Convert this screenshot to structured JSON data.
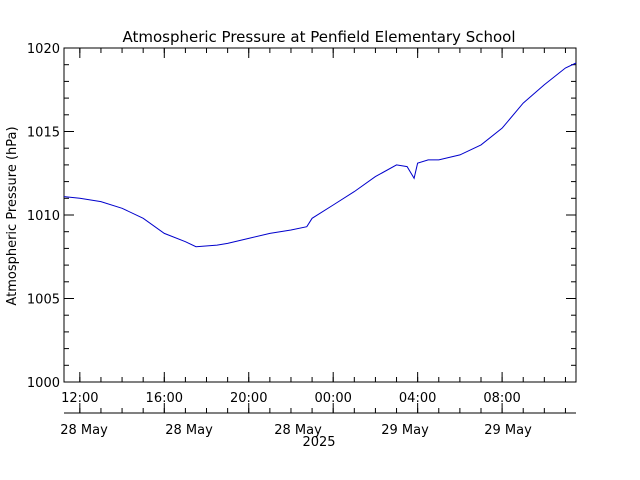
{
  "chart_data": {
    "type": "line",
    "title": "Atmospheric Pressure at Penfield Elementary School",
    "ylabel": "Atmospheric Pressure (hPa)",
    "year_label": "2025",
    "ylim": [
      1000,
      1020
    ],
    "y_ticks": [
      1000,
      1005,
      1010,
      1015,
      1020
    ],
    "x_time_range": [
      "2025-05-28 11:15",
      "2025-05-29 11:30"
    ],
    "x_ticks": [
      {
        "time": "2025-05-28 12:00",
        "label": "12:00",
        "date_label": "28 May"
      },
      {
        "time": "2025-05-28 16:00",
        "label": "16:00",
        "date_label": "28 May"
      },
      {
        "time": "2025-05-28 20:00",
        "label": "20:00",
        "date_label": "28 May"
      },
      {
        "time": "2025-05-29 00:00",
        "label": "00:00",
        "date_label": "29 May"
      },
      {
        "time": "2025-05-29 04:00",
        "label": "04:00",
        "date_label": "29 May"
      },
      {
        "time": "2025-05-29 08:00",
        "label": "08:00",
        "date_label": ""
      }
    ],
    "grid": false,
    "line_color": "#0000cc",
    "series": [
      {
        "x": [
          "2025-05-28 11:15",
          "2025-05-28 12:00",
          "2025-05-28 13:00",
          "2025-05-28 14:00",
          "2025-05-28 15:00",
          "2025-05-28 16:00",
          "2025-05-28 17:00",
          "2025-05-28 17:30",
          "2025-05-28 18:30",
          "2025-05-28 19:00",
          "2025-05-28 20:00",
          "2025-05-28 21:00",
          "2025-05-28 22:00",
          "2025-05-28 22:45",
          "2025-05-28 23:00",
          "2025-05-29 00:00",
          "2025-05-29 01:00",
          "2025-05-29 02:00",
          "2025-05-29 03:00",
          "2025-05-29 03:30",
          "2025-05-29 03:50",
          "2025-05-29 04:00",
          "2025-05-29 04:30",
          "2025-05-29 05:00",
          "2025-05-29 06:00",
          "2025-05-29 07:00",
          "2025-05-29 08:00",
          "2025-05-29 09:00",
          "2025-05-29 10:00",
          "2025-05-29 11:00",
          "2025-05-29 11:30"
        ],
        "y": [
          1011.1,
          1011.0,
          1010.8,
          1010.4,
          1009.8,
          1008.9,
          1008.4,
          1008.1,
          1008.2,
          1008.3,
          1008.6,
          1008.9,
          1009.1,
          1009.3,
          1009.8,
          1010.6,
          1011.4,
          1012.3,
          1013.0,
          1012.9,
          1012.2,
          1013.1,
          1013.3,
          1013.3,
          1013.6,
          1014.2,
          1015.2,
          1016.7,
          1017.8,
          1018.8,
          1019.1
        ]
      }
    ]
  }
}
